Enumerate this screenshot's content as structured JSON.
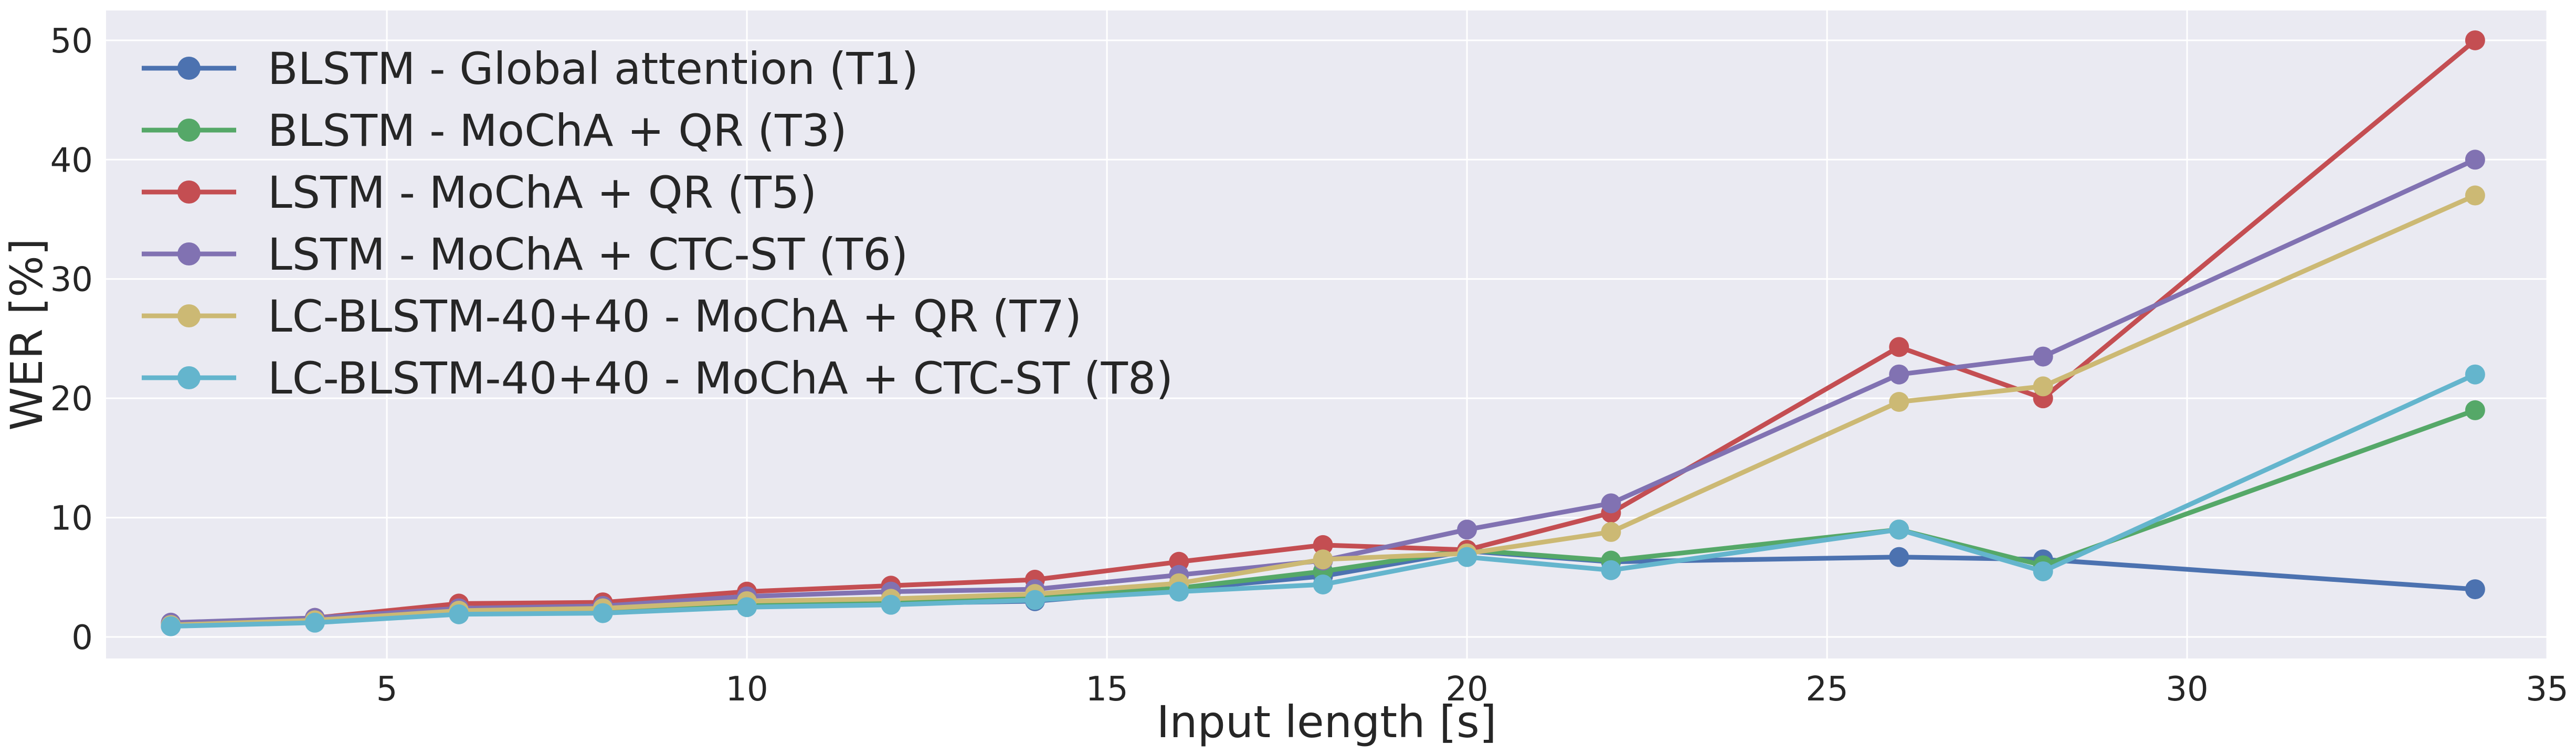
{
  "chart_data": {
    "type": "line",
    "title": "",
    "xlabel": "Input length [s]",
    "ylabel": "WER [%]",
    "xlim": [
      1.1,
      35
    ],
    "ylim": [
      -1.8,
      52.5
    ],
    "xticks": [
      5,
      10,
      15,
      20,
      25,
      30,
      35
    ],
    "yticks": [
      0,
      10,
      20,
      30,
      40,
      50
    ],
    "grid": true,
    "legend_position": "top-left",
    "x": [
      2,
      4,
      6,
      8,
      10,
      12,
      14,
      16,
      18,
      20,
      22,
      26,
      28,
      34
    ],
    "series": [
      {
        "name": "BLSTM - Global attention (T1)",
        "color": "#4c72b0",
        "values": [
          0.9,
          1.3,
          2.0,
          2.1,
          2.6,
          2.8,
          3.0,
          4.0,
          5.1,
          7.2,
          6.3,
          6.7,
          6.5,
          4.0
        ]
      },
      {
        "name": "BLSTM - MoChA + QR (T3)",
        "color": "#55a868",
        "values": [
          1.0,
          1.3,
          2.1,
          2.2,
          2.8,
          3.0,
          3.3,
          4.1,
          5.5,
          7.3,
          6.4,
          9.0,
          6.0,
          19.0
        ]
      },
      {
        "name": "LSTM - MoChA + QR (T5)",
        "color": "#c44e52",
        "values": [
          1.1,
          1.6,
          2.8,
          2.9,
          3.8,
          4.3,
          4.8,
          6.3,
          7.7,
          7.3,
          10.4,
          24.3,
          20.0,
          50.0
        ]
      },
      {
        "name": "LSTM - MoChA + CTC-ST (T6)",
        "color": "#8172b2",
        "values": [
          1.2,
          1.6,
          2.4,
          2.6,
          3.4,
          3.8,
          4.0,
          5.2,
          6.4,
          9.0,
          11.2,
          22.0,
          23.5,
          40.0
        ]
      },
      {
        "name": "LC-BLSTM-40+40 - MoChA + QR (T7)",
        "color": "#ccb974",
        "values": [
          1.0,
          1.4,
          2.2,
          2.4,
          3.0,
          3.2,
          3.6,
          4.5,
          6.5,
          7.0,
          8.8,
          19.7,
          21.0,
          37.0
        ]
      },
      {
        "name": "LC-BLSTM-40+40 - MoChA + CTC-ST (T8)",
        "color": "#64b5cd",
        "values": [
          0.9,
          1.2,
          1.9,
          2.0,
          2.5,
          2.7,
          3.1,
          3.8,
          4.4,
          6.7,
          5.6,
          9.0,
          5.5,
          22.0
        ]
      }
    ]
  }
}
